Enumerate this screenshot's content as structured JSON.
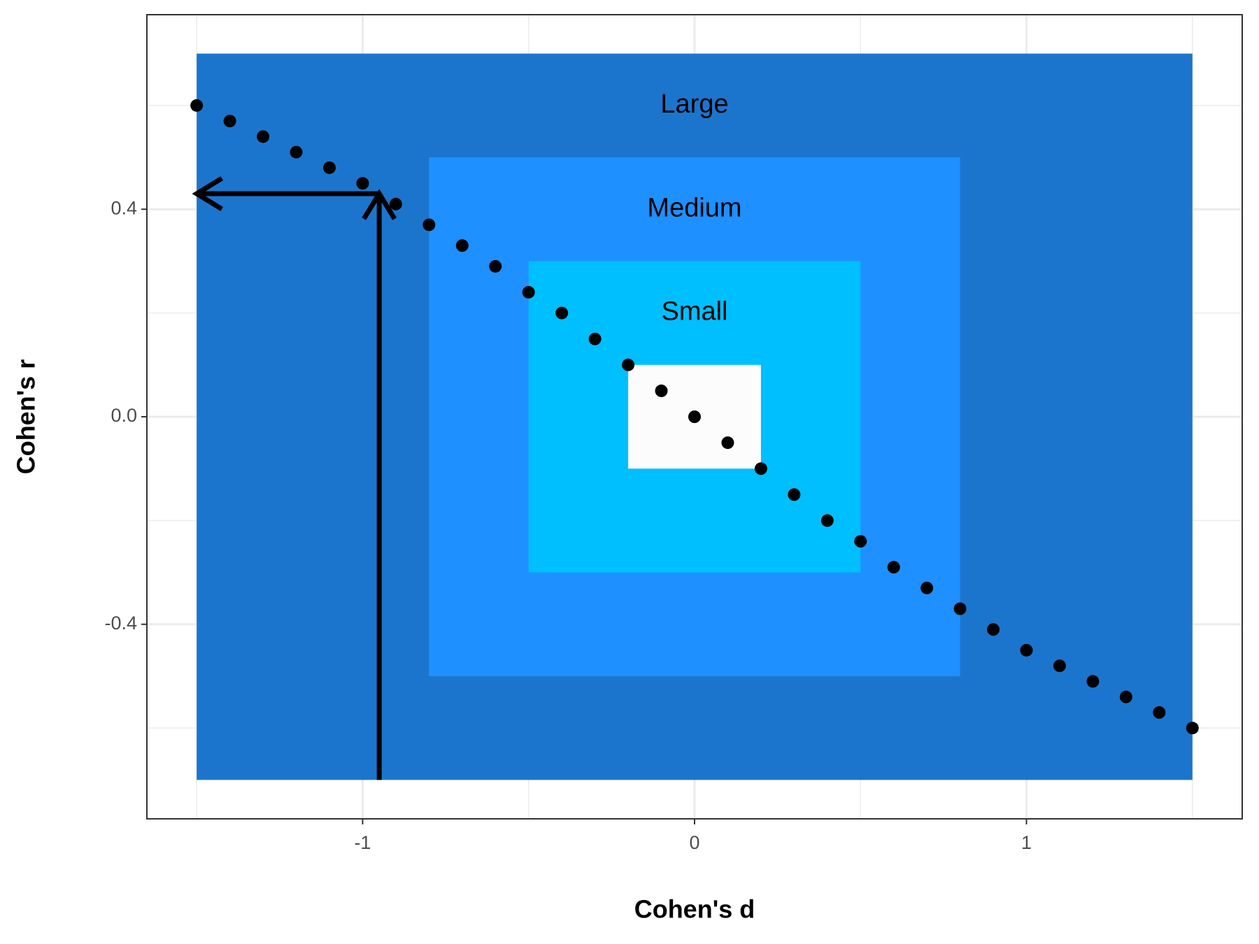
{
  "chart_data": {
    "type": "scatter",
    "x_label": "Cohen's d",
    "y_label": "Cohen's r",
    "x": [
      -1.5,
      -1.4,
      -1.3,
      -1.2,
      -1.1,
      -1.0,
      -0.9,
      -0.8,
      -0.7,
      -0.6,
      -0.5,
      -0.4,
      -0.3,
      -0.2,
      -0.1,
      0.0,
      0.1,
      0.2,
      0.3,
      0.4,
      0.5,
      0.6,
      0.7,
      0.8,
      0.9,
      1.0,
      1.1,
      1.2,
      1.3,
      1.4,
      1.5
    ],
    "values": [
      0.6,
      0.57,
      0.54,
      0.51,
      0.48,
      0.45,
      0.41,
      0.37,
      0.33,
      0.29,
      0.24,
      0.2,
      0.15,
      0.1,
      0.05,
      0,
      -0.05,
      -0.1,
      -0.15,
      -0.2,
      -0.24,
      -0.29,
      -0.33,
      -0.37,
      -0.41,
      -0.45,
      -0.48,
      -0.51,
      -0.54,
      -0.57,
      -0.6
    ],
    "color": "#000000",
    "regions": [
      {
        "label": "Large",
        "color": "#1c75cd",
        "x": [
          -1.5,
          1.5
        ],
        "y": [
          -0.7,
          0.7
        ],
        "label_y": 0.6
      },
      {
        "label": "Medium",
        "color": "#1e90ff",
        "x": [
          -0.8,
          0.8
        ],
        "y": [
          -0.5,
          0.5
        ],
        "label_y": 0.4
      },
      {
        "label": "Small",
        "color": "#00bfff",
        "x": [
          -0.5,
          0.5
        ],
        "y": [
          -0.3,
          0.3
        ],
        "label_y": 0.2
      },
      {
        "color": "#fcfcfc",
        "x": [
          -0.2,
          0.2
        ],
        "y": [
          -0.1,
          0.1
        ]
      }
    ],
    "arrow": {
      "x": -0.95,
      "y": 0.43,
      "y_start": -0.7,
      "x_end": -1.5
    },
    "xlim": [
      -1.65,
      1.65
    ],
    "ylim": [
      -0.775,
      0.775
    ],
    "xticks": [
      -1,
      0,
      1
    ],
    "yticks": [
      -0.4,
      {
        "value": 0,
        "label": "0.0"
      },
      0.4
    ],
    "x_minor": [
      -1.5,
      -0.5,
      0.5,
      1.5
    ],
    "y_minor": [
      -0.6,
      -0.2,
      0.2,
      0.6
    ],
    "grid": true
  }
}
